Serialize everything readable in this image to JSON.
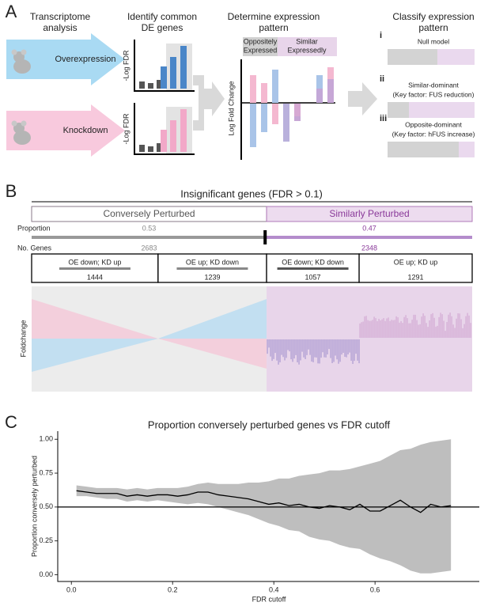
{
  "panel_a": {
    "label": "A",
    "steps": [
      {
        "lines": [
          "Transcriptome",
          "analysis"
        ]
      },
      {
        "lines": [
          "Identify common",
          "DE genes"
        ]
      },
      {
        "lines": [
          "Determine expression",
          "pattern"
        ]
      },
      {
        "lines": [
          "Classify expression",
          "pattern"
        ]
      }
    ],
    "arrows": [
      "Overexpression",
      "Knockdown"
    ],
    "fdr_axis_label": "-Log FDR",
    "pattern_headers": [
      {
        "lines": [
          "Oppositely",
          "Expressed"
        ]
      },
      {
        "lines": [
          "Similar",
          "Expressedly"
        ]
      }
    ],
    "fold_change_label": "Log Fold Change",
    "models": [
      {
        "numeral": "i",
        "lines": [
          "Null model"
        ]
      },
      {
        "numeral": "ii",
        "lines": [
          "Similar-dominant",
          "(Key factor: FUS reduction)"
        ]
      },
      {
        "numeral": "iii",
        "lines": [
          "Opposite-dominant",
          "(Key factor: hFUS increase)"
        ]
      }
    ]
  },
  "panel_b": {
    "label": "B",
    "title": "Insignificant genes (FDR > 0.1)",
    "proportion_label": "Proportion",
    "genes_label": "No. Genes",
    "y_label": "Foldchange",
    "groups": [
      {
        "name": "Conversely Perturbed",
        "proportion": 0.53,
        "genes": 2683,
        "subgroups": [
          {
            "name": "OE down; KD up",
            "count": 1444
          },
          {
            "name": "OE up; KD down",
            "count": 1239
          }
        ]
      },
      {
        "name": "Similarly Perturbed",
        "proportion": 0.47,
        "genes": 2348,
        "subgroups": [
          {
            "name": "OE down; KD down",
            "count": 1057
          },
          {
            "name": "OE up; KD up",
            "count": 1291
          }
        ]
      }
    ]
  },
  "chart_data": {
    "type": "line",
    "panel_label": "C",
    "title": "Proportion conversely perturbed genes vs FDR cutoff",
    "x_label": "FDR cutoff",
    "y_label": "Proportion conversely perturbed",
    "x": [
      0.01,
      0.03,
      0.05,
      0.07,
      0.09,
      0.11,
      0.13,
      0.15,
      0.17,
      0.19,
      0.21,
      0.23,
      0.25,
      0.27,
      0.29,
      0.31,
      0.33,
      0.35,
      0.37,
      0.39,
      0.41,
      0.43,
      0.45,
      0.47,
      0.49,
      0.51,
      0.53,
      0.55,
      0.57,
      0.59,
      0.61,
      0.63,
      0.65,
      0.67,
      0.69,
      0.71,
      0.73,
      0.75
    ],
    "values": [
      0.62,
      0.61,
      0.6,
      0.6,
      0.6,
      0.58,
      0.59,
      0.58,
      0.59,
      0.59,
      0.58,
      0.59,
      0.61,
      0.61,
      0.59,
      0.58,
      0.57,
      0.56,
      0.54,
      0.52,
      0.53,
      0.51,
      0.52,
      0.5,
      0.49,
      0.51,
      0.5,
      0.48,
      0.52,
      0.47,
      0.47,
      0.51,
      0.55,
      0.5,
      0.46,
      0.52,
      0.5,
      0.51
    ],
    "upper": [
      0.66,
      0.65,
      0.64,
      0.64,
      0.64,
      0.63,
      0.64,
      0.63,
      0.64,
      0.64,
      0.64,
      0.65,
      0.67,
      0.68,
      0.67,
      0.67,
      0.67,
      0.68,
      0.68,
      0.69,
      0.71,
      0.71,
      0.73,
      0.74,
      0.75,
      0.77,
      0.77,
      0.78,
      0.8,
      0.82,
      0.84,
      0.88,
      0.92,
      0.93,
      0.96,
      0.98,
      0.99,
      1.0
    ],
    "lower": [
      0.58,
      0.58,
      0.57,
      0.56,
      0.56,
      0.54,
      0.55,
      0.54,
      0.55,
      0.54,
      0.53,
      0.52,
      0.53,
      0.52,
      0.5,
      0.48,
      0.46,
      0.44,
      0.41,
      0.38,
      0.36,
      0.33,
      0.32,
      0.28,
      0.26,
      0.25,
      0.22,
      0.2,
      0.19,
      0.15,
      0.12,
      0.1,
      0.07,
      0.03,
      0.01,
      0.01,
      0.02,
      0.03
    ],
    "color": "#000000",
    "band_color": "#bebebe",
    "hline": 0.5,
    "xlim": [
      -0.027,
      0.806
    ],
    "ylim": [
      -0.05,
      1.06
    ],
    "xticks": [
      {
        "value": 0,
        "label": "0.0"
      },
      0.2,
      0.4,
      0.6
    ],
    "yticks": [
      {
        "value": 0,
        "label": "0.00"
      },
      {
        "value": 0.25,
        "label": "0.25"
      },
      {
        "value": 0.5,
        "label": "0.50"
      },
      {
        "value": 0.75,
        "label": "0.75"
      },
      {
        "value": 1,
        "label": "1.00"
      }
    ]
  }
}
